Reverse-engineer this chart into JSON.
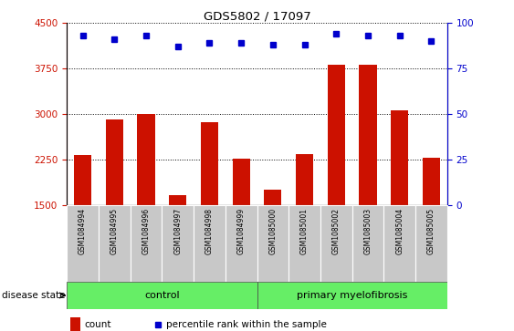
{
  "title": "GDS5802 / 17097",
  "samples": [
    "GSM1084994",
    "GSM1084995",
    "GSM1084996",
    "GSM1084997",
    "GSM1084998",
    "GSM1084999",
    "GSM1085000",
    "GSM1085001",
    "GSM1085002",
    "GSM1085003",
    "GSM1085004",
    "GSM1085005"
  ],
  "counts": [
    2320,
    2920,
    3010,
    1660,
    2870,
    2260,
    1760,
    2340,
    3820,
    3820,
    3060,
    2280
  ],
  "percentile_ranks": [
    93,
    91,
    93,
    87,
    89,
    89,
    88,
    88,
    94,
    93,
    93,
    90
  ],
  "bar_color": "#CC1100",
  "dot_color": "#0000CC",
  "ylim_left": [
    1500,
    4500
  ],
  "ylim_right": [
    0,
    100
  ],
  "yticks_left": [
    1500,
    2250,
    3000,
    3750,
    4500
  ],
  "yticks_right": [
    0,
    25,
    50,
    75,
    100
  ],
  "left_axis_color": "#CC1100",
  "right_axis_color": "#0000CC",
  "gray_bg": "#C8C8C8",
  "green_bg": "#66EE66",
  "n_control": 6,
  "n_pmf": 6,
  "group_label_control": "control",
  "group_label_pmf": "primary myelofibrosis",
  "disease_state_label": "disease state",
  "legend_count": "count",
  "legend_pct": "percentile rank within the sample"
}
